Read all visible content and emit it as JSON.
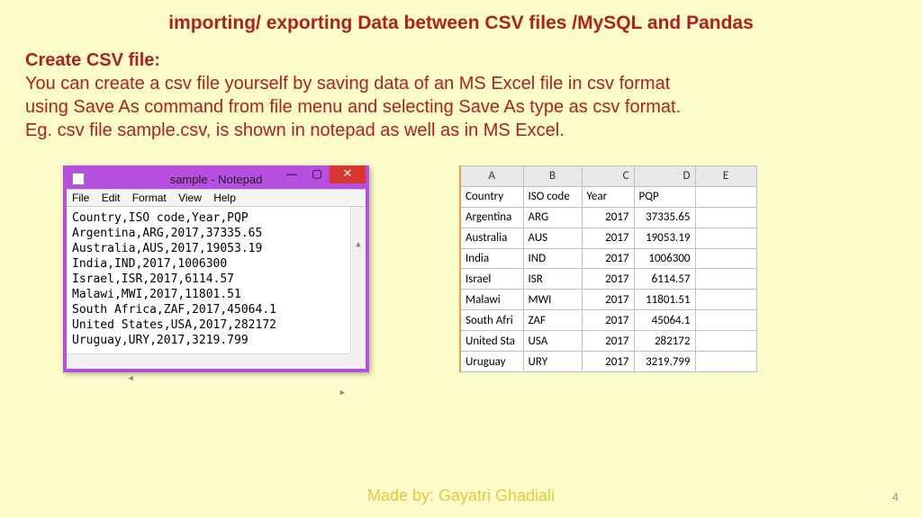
{
  "title": "importing/ exporting Data between CSV files /MySQL and Pandas",
  "section_heading": "Create CSV file:",
  "body_line1": "You can create a csv file yourself by saving data of an MS Excel file in csv format",
  "body_line2": "using Save As command from file menu and selecting Save As type as csv format.",
  "body_line3": "Eg. csv file sample.csv, is shown in notepad as well as in MS Excel.",
  "notepad": {
    "window_title": "sample - Notepad",
    "menus": {
      "file": "File",
      "edit": "Edit",
      "format": "Format",
      "view": "View",
      "help": "Help"
    },
    "content": "Country,ISO code,Year,PQP\nArgentina,ARG,2017,37335.65\nAustralia,AUS,2017,19053.19\nIndia,IND,2017,1006300\nIsrael,ISR,2017,6114.57\nMalawi,MWI,2017,11801.51\nSouth Africa,ZAF,2017,45064.1\nUnited States,USA,2017,282172\nUruguay,URY,2017,3219.799",
    "close_glyph": "✕",
    "min_glyph": "—",
    "max_glyph": "▢"
  },
  "excel": {
    "col_headers": {
      "a": "A",
      "b": "B",
      "c": "C",
      "d": "D",
      "e": "E"
    },
    "header_row": {
      "a": "Country",
      "b": "ISO code",
      "c": "Year",
      "d": "PQP"
    },
    "rows": [
      {
        "a": "Argentina",
        "b": "ARG",
        "c": "2017",
        "d": "37335.65"
      },
      {
        "a": "Australia",
        "b": "AUS",
        "c": "2017",
        "d": "19053.19"
      },
      {
        "a": "India",
        "b": "IND",
        "c": "2017",
        "d": "1006300"
      },
      {
        "a": "Israel",
        "b": "ISR",
        "c": "2017",
        "d": "6114.57"
      },
      {
        "a": "Malawi",
        "b": "MWI",
        "c": "2017",
        "d": "11801.51"
      },
      {
        "a": "South Afri",
        "b": "ZAF",
        "c": "2017",
        "d": "45064.1"
      },
      {
        "a": "United Sta",
        "b": "USA",
        "c": "2017",
        "d": "282172"
      },
      {
        "a": "Uruguay",
        "b": "URY",
        "c": "2017",
        "d": "3219.799"
      }
    ]
  },
  "footer": "Made by: Gayatri Ghadiali",
  "page_number": "4",
  "colors": {
    "page_bg": "#fcfccb",
    "heading_text": "#b02020",
    "notepad_border": "#b84ee0",
    "close_btn": "#d9362f",
    "footer_text": "#e6c838",
    "excel_border": "#c0c0c0",
    "excel_header_bg": "#e8e8e8"
  }
}
